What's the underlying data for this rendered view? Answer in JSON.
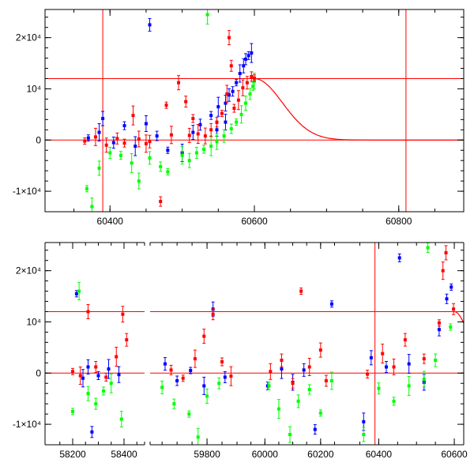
{
  "chart_data": [
    {
      "type": "scatter",
      "panel": "top",
      "title": "",
      "xlabel": "",
      "ylabel": "",
      "xlim": [
        60310,
        60890
      ],
      "ylim": [
        -14000,
        25500
      ],
      "x_ticks": [
        {
          "value": 60400,
          "label": "60400"
        },
        {
          "value": 60600,
          "label": "60600"
        },
        {
          "value": 60800,
          "label": "60800"
        }
      ],
      "y_ticks": [
        {
          "value": -10000,
          "label": "-1×10⁴"
        },
        {
          "value": 0,
          "label": "0"
        },
        {
          "value": 10000,
          "label": "10⁴"
        },
        {
          "value": 20000,
          "label": "2×10⁴"
        }
      ],
      "grid": false,
      "legend": "none",
      "series_colors": {
        "blue": "#0000ff",
        "green": "#00ff00",
        "red": "#ff0000"
      },
      "lines": {
        "color": "#ff0000",
        "horizontal": [
          0,
          12000
        ],
        "vertical": [
          60390,
          60810
        ],
        "model_curve": {
          "peak_x": 60600,
          "peak_y": 12000,
          "decay_width_days": 55
        }
      },
      "series": [
        {
          "color": "blue",
          "points": [
            [
              60370,
              400
            ],
            [
              60385,
              1500
            ],
            [
              60390,
              4200
            ],
            [
              60405,
              -500
            ],
            [
              60420,
              2800
            ],
            [
              60435,
              -1200
            ],
            [
              60450,
              3200
            ],
            [
              60455,
              22500
            ],
            [
              60465,
              800
            ],
            [
              60480,
              -2000
            ],
            [
              60500,
              -2500
            ],
            [
              60515,
              1500
            ],
            [
              60525,
              3000
            ],
            [
              60540,
              4800
            ],
            [
              60550,
              6500
            ],
            [
              60560,
              7200
            ],
            [
              60565,
              8800
            ],
            [
              60570,
              9500
            ],
            [
              60575,
              11200
            ],
            [
              60580,
              13000
            ],
            [
              60585,
              14500
            ],
            [
              60588,
              15800
            ],
            [
              60592,
              16500
            ],
            [
              60596,
              17000
            ],
            [
              60560,
              3500
            ],
            [
              60548,
              2000
            ]
          ]
        },
        {
          "color": "green",
          "points": [
            [
              60368,
              -9500
            ],
            [
              60375,
              -13000
            ],
            [
              60385,
              -5500
            ],
            [
              60400,
              -2500
            ],
            [
              60415,
              -3000
            ],
            [
              60430,
              -4500
            ],
            [
              60440,
              -8000
            ],
            [
              60455,
              -3500
            ],
            [
              60470,
              -5200
            ],
            [
              60480,
              -6200
            ],
            [
              60500,
              -3000
            ],
            [
              60510,
              -4000
            ],
            [
              60520,
              -2500
            ],
            [
              60530,
              -1800
            ],
            [
              60540,
              -1200
            ],
            [
              60548,
              -300
            ],
            [
              60558,
              800
            ],
            [
              60568,
              2200
            ],
            [
              60575,
              3500
            ],
            [
              60582,
              5000
            ],
            [
              60588,
              7200
            ],
            [
              60594,
              9000
            ],
            [
              60598,
              10500
            ],
            [
              60535,
              24500
            ],
            [
              60600,
              11500
            ]
          ]
        },
        {
          "color": "red",
          "points": [
            [
              60365,
              -200
            ],
            [
              60380,
              600
            ],
            [
              60395,
              -1000
            ],
            [
              60410,
              300
            ],
            [
              60420,
              -600
            ],
            [
              60432,
              4800
            ],
            [
              60440,
              200
            ],
            [
              60455,
              -300
            ],
            [
              60470,
              -12000
            ],
            [
              60478,
              6800
            ],
            [
              60485,
              1000
            ],
            [
              60495,
              11200
            ],
            [
              60505,
              7500
            ],
            [
              60515,
              4200
            ],
            [
              60522,
              1200
            ],
            [
              60532,
              800
            ],
            [
              60540,
              2000
            ],
            [
              60548,
              3500
            ],
            [
              60555,
              5200
            ],
            [
              60562,
              9000
            ],
            [
              60565,
              20000
            ],
            [
              60568,
              14500
            ],
            [
              60572,
              6200
            ],
            [
              60578,
              7800
            ],
            [
              60584,
              10200
            ],
            [
              60590,
              11200
            ],
            [
              60596,
              12400
            ],
            [
              60600,
              12100
            ],
            [
              60450,
              -700
            ],
            [
              60510,
              900
            ]
          ]
        }
      ]
    },
    {
      "type": "scatter",
      "panel": "bottom",
      "title": "",
      "xlabel": "",
      "ylabel": "",
      "ylim": [
        -14000,
        25500
      ],
      "broken_axis": true,
      "segments": [
        {
          "xlim": [
            58120,
            58480
          ]
        },
        {
          "xlim": [
            59610,
            59900
          ]
        },
        {
          "xlim": [
            59900,
            60260
          ]
        },
        {
          "xlim": [
            60305,
            60625
          ]
        }
      ],
      "x_ticks": [
        {
          "value": 58200,
          "label": "58200"
        },
        {
          "value": 58400,
          "label": "58400"
        },
        {
          "value": 59800,
          "label": "59800"
        },
        {
          "value": 60000,
          "label": "60000"
        },
        {
          "value": 60200,
          "label": "60200"
        },
        {
          "value": 60400,
          "label": "60400"
        },
        {
          "value": 60600,
          "label": "60600"
        }
      ],
      "y_ticks": [
        {
          "value": -10000,
          "label": "-1×10⁴"
        },
        {
          "value": 0,
          "label": "0"
        },
        {
          "value": 10000,
          "label": "10⁴"
        },
        {
          "value": 20000,
          "label": "2×10⁴"
        }
      ],
      "grid": false,
      "legend": "none",
      "lines": {
        "color": "#ff0000",
        "horizontal": [
          0,
          12000
        ],
        "vertical": [
          60390
        ]
      },
      "series": [
        {
          "color": "blue",
          "points": [
            [
              58215,
              15500
            ],
            [
              58240,
              -1000
            ],
            [
              58260,
              1200
            ],
            [
              58275,
              -11500
            ],
            [
              58300,
              -500
            ],
            [
              58340,
              800
            ],
            [
              58380,
              -300
            ],
            [
              59660,
              1800
            ],
            [
              59700,
              -1500
            ],
            [
              59745,
              500
            ],
            [
              59790,
              -2500
            ],
            [
              59820,
              12500
            ],
            [
              59860,
              -800
            ],
            [
              60010,
              -2500
            ],
            [
              60060,
              800
            ],
            [
              60100,
              -1800
            ],
            [
              60140,
              600
            ],
            [
              60180,
              -11000
            ],
            [
              60240,
              13500
            ],
            [
              60360,
              -9500
            ],
            [
              60380,
              3000
            ],
            [
              60420,
              1200
            ],
            [
              60455,
              22500
            ],
            [
              60480,
              1800
            ],
            [
              60520,
              -1800
            ],
            [
              60560,
              8500
            ],
            [
              60580,
              14500
            ],
            [
              60592,
              16800
            ]
          ]
        },
        {
          "color": "green",
          "points": [
            [
              58200,
              -7500
            ],
            [
              58225,
              16000
            ],
            [
              58260,
              -4000
            ],
            [
              58290,
              -6000
            ],
            [
              58320,
              -3500
            ],
            [
              58350,
              -2000
            ],
            [
              58390,
              -9000
            ],
            [
              59650,
              -2800
            ],
            [
              59690,
              -6000
            ],
            [
              59740,
              -8000
            ],
            [
              59770,
              -12500
            ],
            [
              59800,
              -4500
            ],
            [
              59840,
              -2000
            ],
            [
              60015,
              -2500
            ],
            [
              60050,
              -7000
            ],
            [
              60090,
              -12000
            ],
            [
              60120,
              -5500
            ],
            [
              60160,
              -3200
            ],
            [
              60200,
              -7800
            ],
            [
              60240,
              -1500
            ],
            [
              60360,
              -12000
            ],
            [
              60400,
              -3000
            ],
            [
              60440,
              -5500
            ],
            [
              60480,
              -2500
            ],
            [
              60520,
              -1200
            ],
            [
              60550,
              2500
            ],
            [
              60530,
              24500
            ],
            [
              60590,
              9000
            ]
          ]
        },
        {
          "color": "red",
          "points": [
            [
              58200,
              300
            ],
            [
              58230,
              -500
            ],
            [
              58260,
              12000
            ],
            [
              58290,
              1200
            ],
            [
              58330,
              -800
            ],
            [
              58370,
              3200
            ],
            [
              58395,
              11500
            ],
            [
              58410,
              6500
            ],
            [
              59680,
              600
            ],
            [
              59720,
              -1000
            ],
            [
              59760,
              2800
            ],
            [
              59790,
              7200
            ],
            [
              59820,
              11500
            ],
            [
              59850,
              2200
            ],
            [
              59880,
              -600
            ],
            [
              60020,
              300
            ],
            [
              60060,
              2500
            ],
            [
              60100,
              -2000
            ],
            [
              60130,
              16000
            ],
            [
              60160,
              1200
            ],
            [
              60200,
              4500
            ],
            [
              60220,
              -1500
            ],
            [
              60370,
              -200
            ],
            [
              60410,
              3800
            ],
            [
              60440,
              1200
            ],
            [
              60470,
              6500
            ],
            [
              60520,
              2800
            ],
            [
              60560,
              9800
            ],
            [
              60570,
              20000
            ],
            [
              60578,
              23500
            ],
            [
              60598,
              12500
            ]
          ]
        }
      ]
    }
  ]
}
